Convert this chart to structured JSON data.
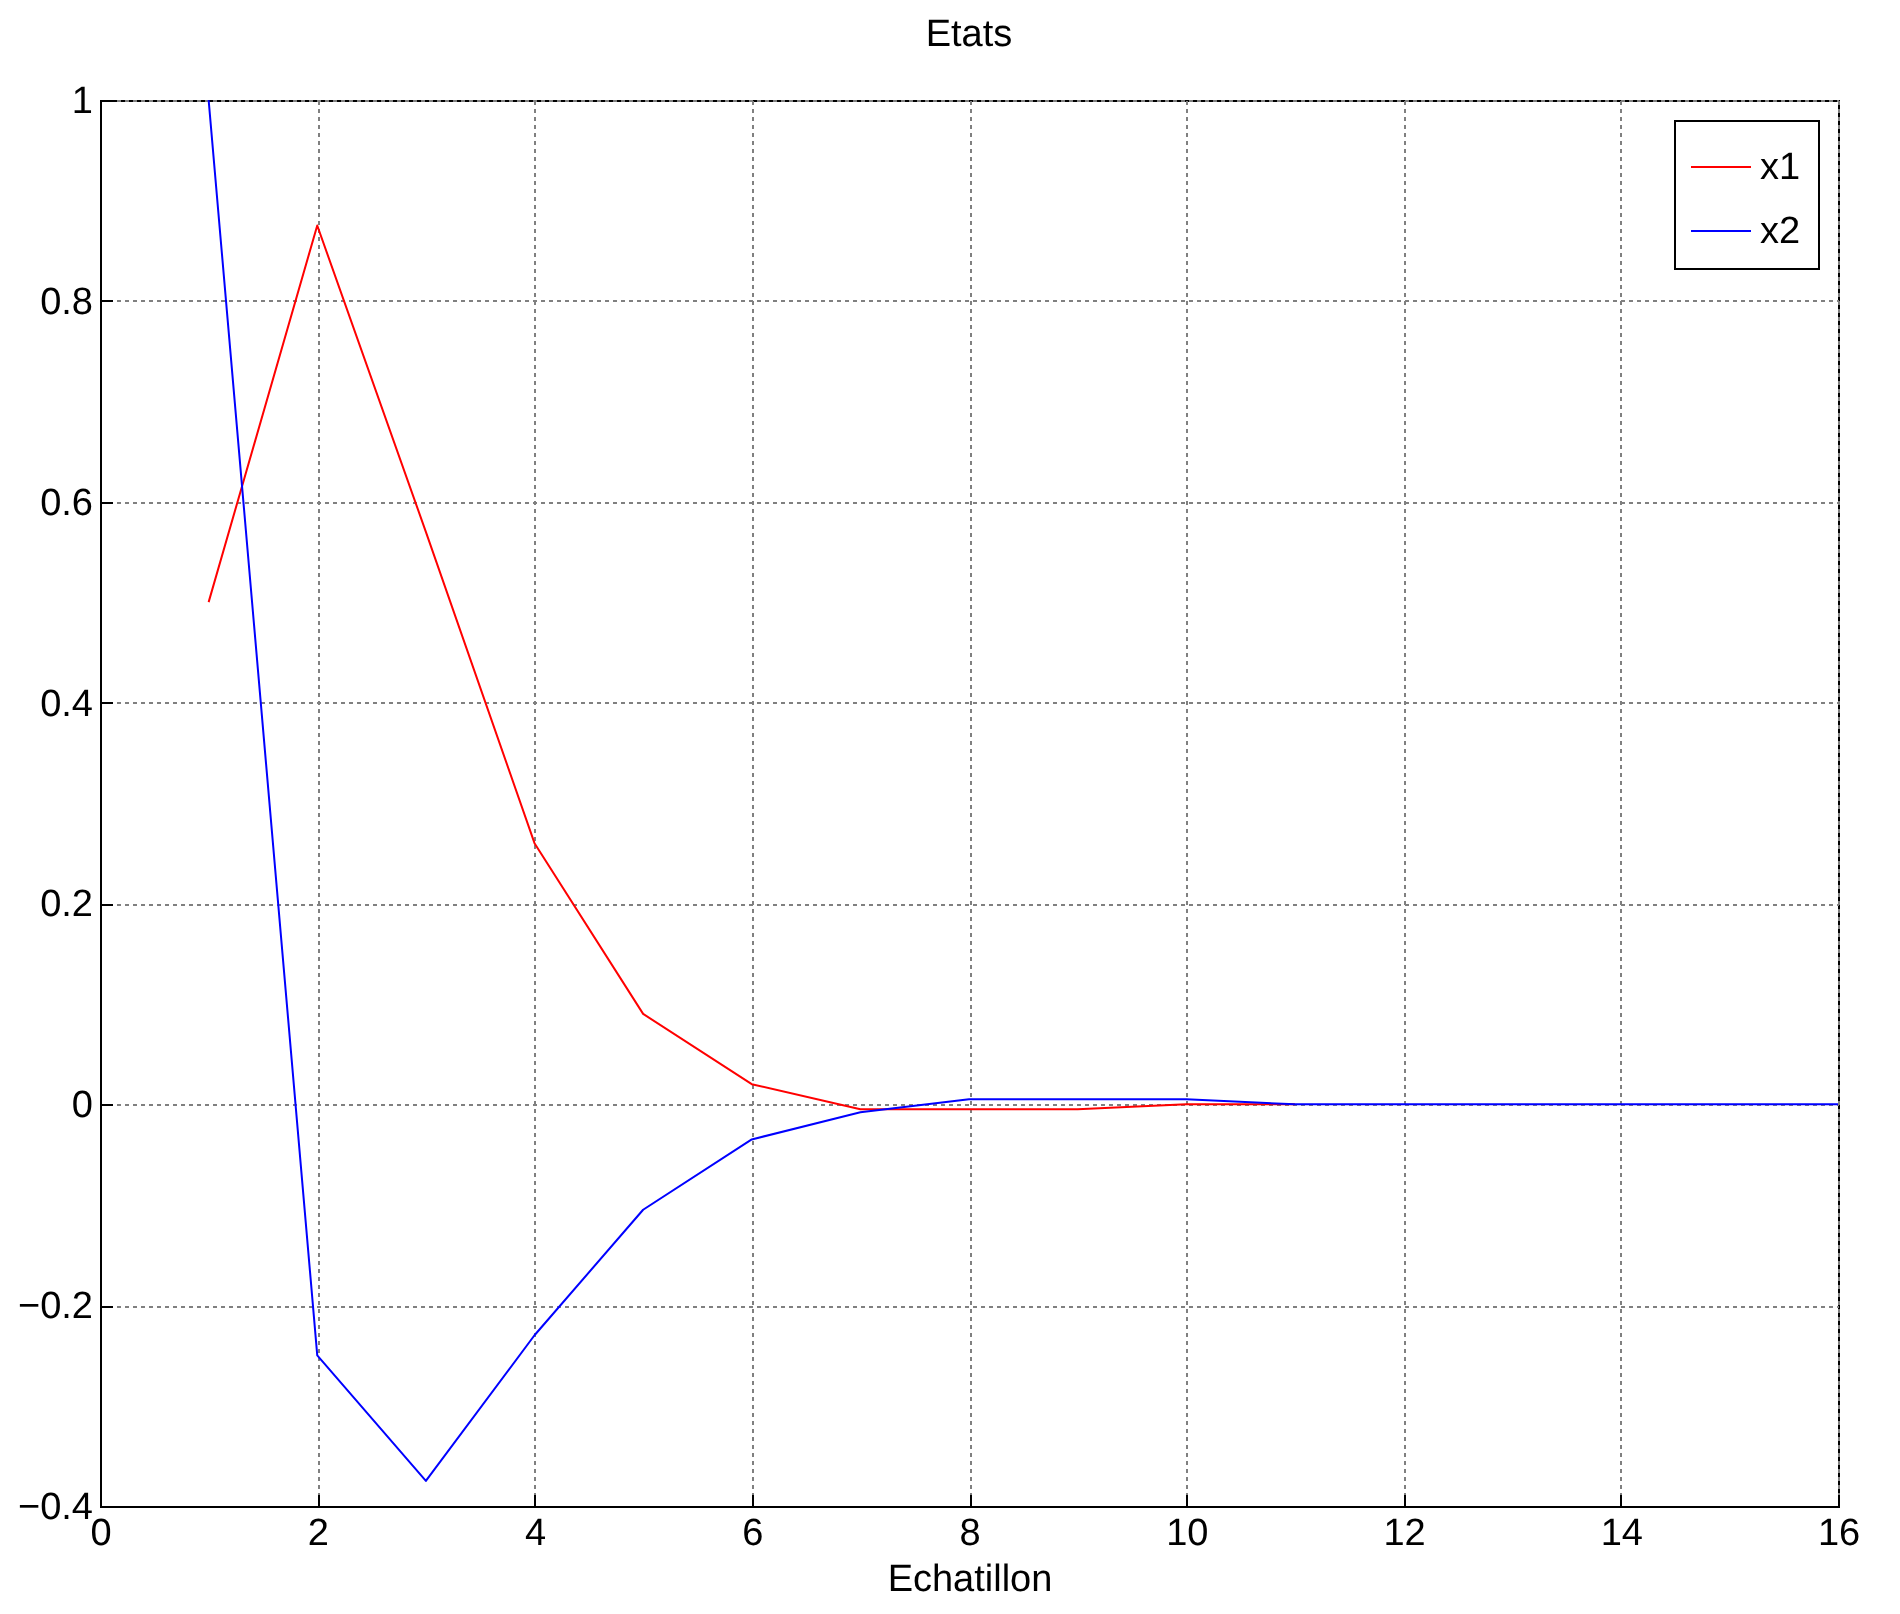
{
  "chart_data": {
    "type": "line",
    "title": "Etats",
    "xlabel": "Echatillon",
    "x": [
      1,
      2,
      3,
      4,
      5,
      6,
      7,
      8,
      9,
      10,
      11,
      12,
      13,
      14,
      15,
      16
    ],
    "series": [
      {
        "name": "x1",
        "color": "#ff0000",
        "values": [
          0.5,
          0.875,
          0.57,
          0.26,
          0.09,
          0.02,
          -0.005,
          -0.005,
          -0.005,
          0,
          0,
          null,
          null,
          null,
          null,
          null
        ]
      },
      {
        "name": "x2",
        "color": "#0000ff",
        "values": [
          1.0,
          -0.25,
          -0.375,
          -0.23,
          -0.105,
          -0.035,
          -0.008,
          0.005,
          0.005,
          0.005,
          0,
          0,
          0,
          0,
          0,
          0
        ]
      }
    ],
    "xlim": [
      0,
      16
    ],
    "xticks": [
      0,
      2,
      4,
      6,
      8,
      10,
      12,
      14,
      16
    ],
    "ylim": [
      -0.4,
      1
    ],
    "yticks": [
      -0.4,
      -0.2,
      0,
      0.2,
      0.4,
      0.6,
      0.8,
      1
    ],
    "grid": true,
    "legend": "top right",
    "line_style": "solid",
    "marker": "none"
  }
}
